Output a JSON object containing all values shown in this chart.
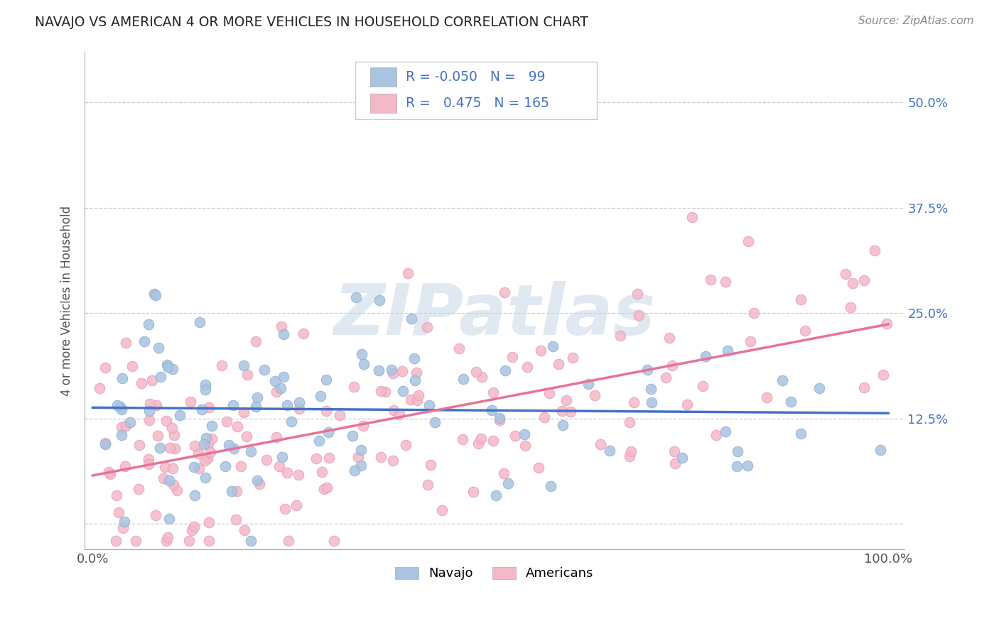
{
  "title": "NAVAJO VS AMERICAN 4 OR MORE VEHICLES IN HOUSEHOLD CORRELATION CHART",
  "source": "Source: ZipAtlas.com",
  "ylabel": "4 or more Vehicles in Household",
  "watermark": "ZIPatlas",
  "navajo_R": -0.05,
  "navajo_N": 99,
  "american_R": 0.475,
  "american_N": 165,
  "navajo_color": "#a8c4e0",
  "american_color": "#f4b8c8",
  "navajo_line_color": "#4472c4",
  "american_line_color": "#e8729a",
  "legend_text_color": "#4472c4",
  "background_color": "#ffffff",
  "grid_color": "#cccccc",
  "navajo_seed": 17,
  "american_seed": 55
}
